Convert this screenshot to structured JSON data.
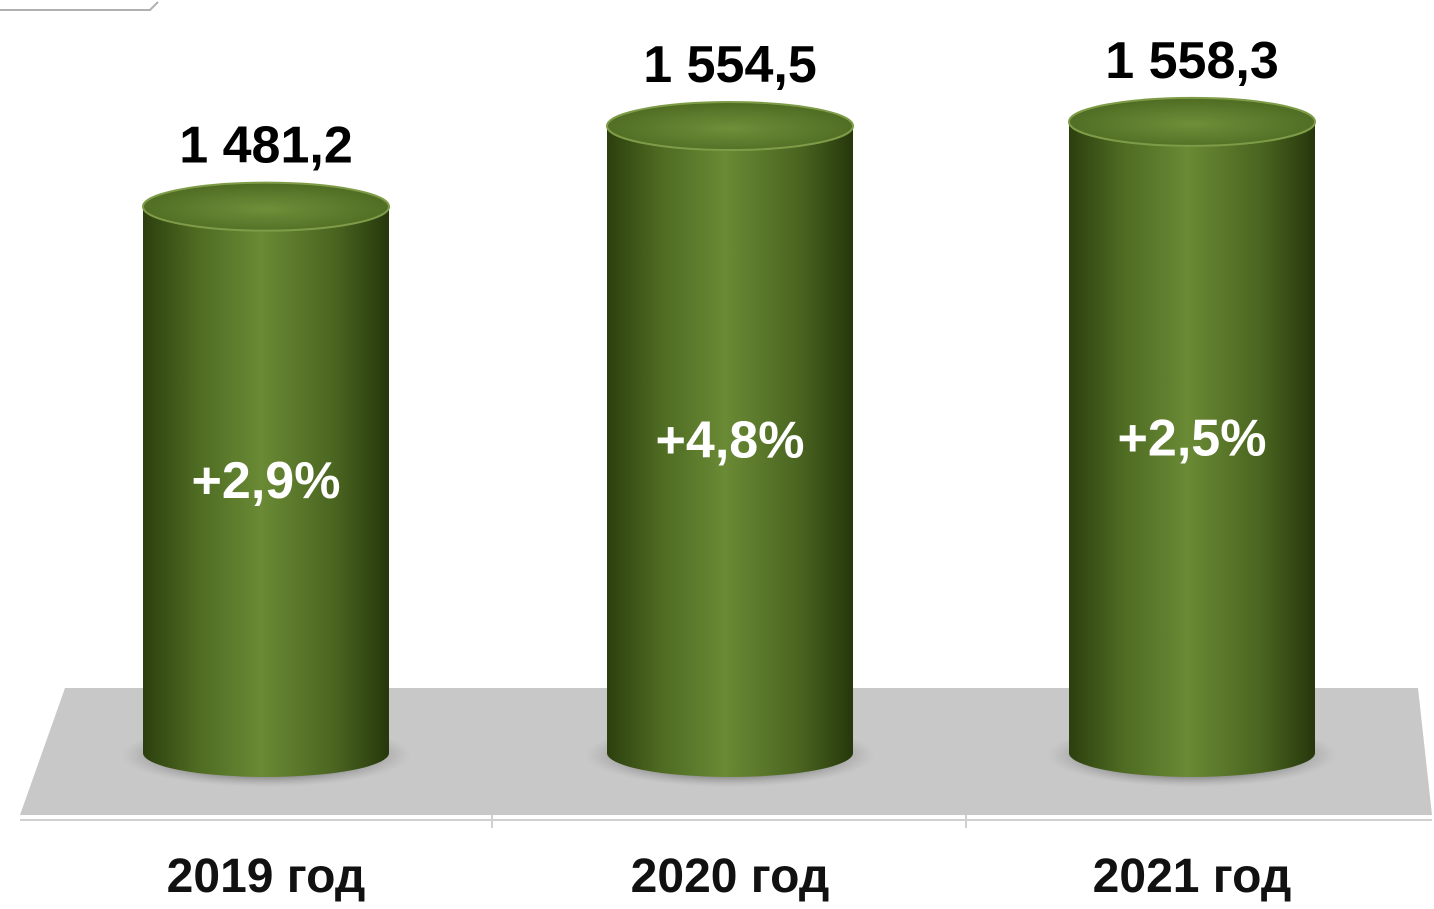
{
  "chart_data": {
    "type": "bar",
    "style": "3d-cylinder",
    "categories": [
      "2019 год",
      "2020 год",
      "2021 год"
    ],
    "values": [
      1481.2,
      1554.5,
      1558.3
    ],
    "value_labels": [
      "1 481,2",
      "1 554,5",
      "1 558,3"
    ],
    "change_labels": [
      "+2,9%",
      "+4,8%",
      "+2,5%"
    ],
    "title": "",
    "xlabel": "",
    "ylabel": "",
    "legend": "none",
    "grid": false,
    "colors": {
      "bar": "#4e6b22",
      "bar_dark": "#2c3f0e",
      "bar_light": "#7c9a45",
      "floor": "#c8c8c8",
      "value_text": "#000000",
      "change_text": "#ffffff"
    }
  }
}
